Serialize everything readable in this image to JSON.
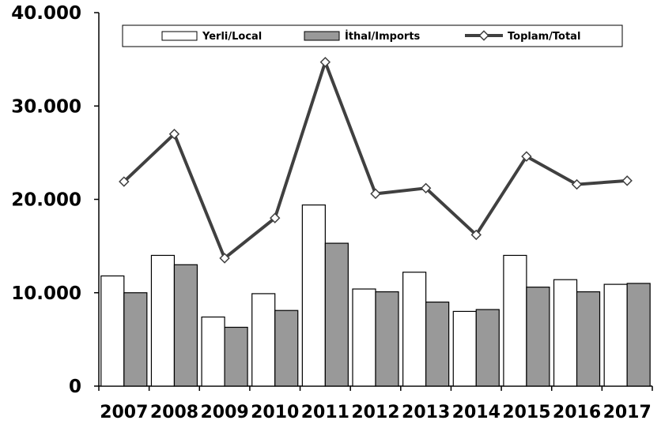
{
  "chart_data": {
    "type": "bar",
    "categories": [
      "2007",
      "2008",
      "2009",
      "2010",
      "2011",
      "2012",
      "2013",
      "2014",
      "2015",
      "2016",
      "2017"
    ],
    "series": [
      {
        "name": "Yerli/Local",
        "type": "bar",
        "color": "#ffffff",
        "values": [
          11800,
          14000,
          7400,
          9900,
          19400,
          10400,
          12200,
          8000,
          14000,
          11400,
          10900
        ]
      },
      {
        "name": "İthal/Imports",
        "type": "bar",
        "color": "#999999",
        "values": [
          10000,
          13000,
          6300,
          8100,
          15300,
          10100,
          9000,
          8200,
          10600,
          10100,
          11000
        ]
      },
      {
        "name": "Toplam/Total",
        "type": "line",
        "color": "#404040",
        "values": [
          21900,
          27000,
          13700,
          18000,
          34700,
          20600,
          21200,
          16200,
          24600,
          21600,
          22000
        ]
      }
    ],
    "yticks": [
      "0",
      "10.000",
      "20.000",
      "30.000",
      "40.000"
    ],
    "ylim": [
      0,
      40000
    ],
    "legend_position": "top",
    "grid": false
  }
}
